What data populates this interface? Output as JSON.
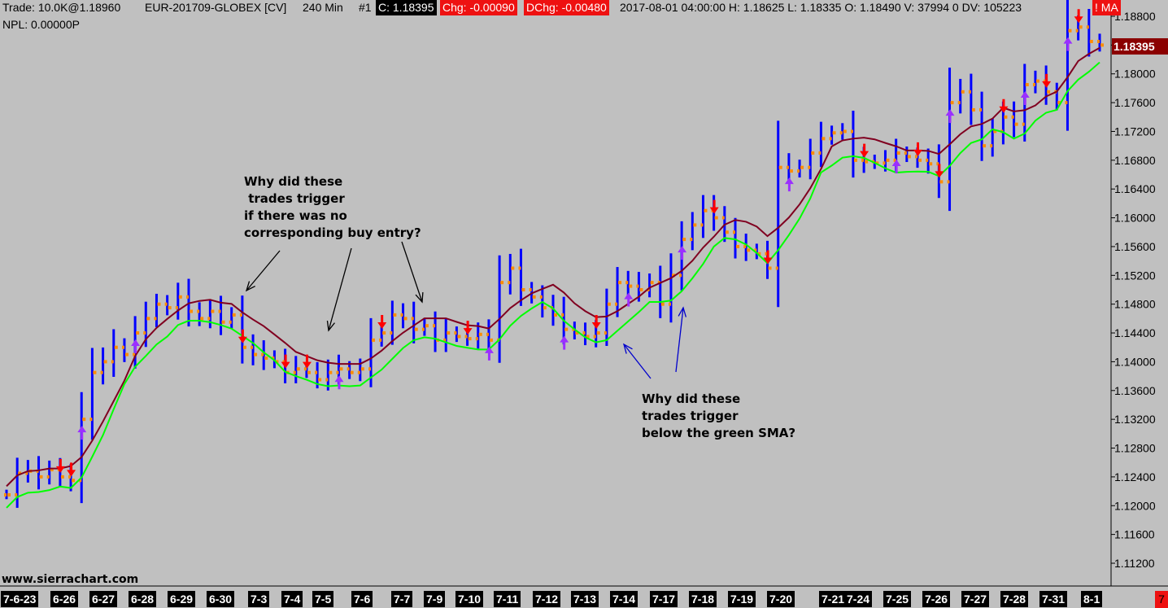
{
  "header": {
    "trade": "Trade: 10.0K@1.18960",
    "symbol": "EUR-201709-GLOBEX [CV]",
    "timeframe": "240 Min",
    "chart_num": "#1",
    "close": "C: 1.18395",
    "chg": "Chg: -0.00090",
    "dchg": "DChg: -0.00480",
    "bar_info": "2017-08-01 04:00:00 H: 1.18625 L: 1.18335 O: 1.18490 V: 37994 0 DV: 105223",
    "alert": "!",
    "alert_text": "MA"
  },
  "npl": "NPL: 0.00000P",
  "current_price": "1.18395",
  "watermark": "www.sierrachart.com",
  "corner_label": "7",
  "annotations": {
    "upper": "Why did these\n trades trigger\nif there was no\ncorresponding buy entry?",
    "lower": "Why did these\ntrades trigger\nbelow the green SMA?"
  },
  "colors": {
    "background": "#c0c0c0",
    "bars": "#0000ff",
    "bar_ticks": "#ff8c00",
    "ma_slow": "#800020",
    "sma_green": "#00ff00",
    "sell_arrow": "#ff0000",
    "buy_arrow": "#9b30ff"
  },
  "chart_data": {
    "type": "ohlc",
    "instrument": "EUR-201709-GLOBEX",
    "interval": "240 Min",
    "y_ticks": [
      "1.18800",
      "1.18400",
      "1.18000",
      "1.17600",
      "1.17200",
      "1.16800",
      "1.16400",
      "1.16000",
      "1.15600",
      "1.15200",
      "1.14800",
      "1.14400",
      "1.14000",
      "1.13600",
      "1.13200",
      "1.12800",
      "1.12400",
      "1.12000",
      "1.11600",
      "1.11200"
    ],
    "ylim": [
      1.109,
      1.189
    ],
    "dates": [
      "7-6-23",
      "6-26",
      "6-27",
      "6-28",
      "6-29",
      "6-30",
      "7-3",
      "7-4",
      "7-5",
      "7-6",
      "7-7",
      "7-9",
      "7-10",
      "7-11",
      "7-12",
      "7-13",
      "7-14",
      "7-17",
      "7-18",
      "7-19",
      "7-20",
      "7-21",
      "7-24",
      "7-25",
      "7-26",
      "7-27",
      "7-28",
      "7-31",
      "8-1"
    ],
    "close_series": [
      1.1215,
      1.1245,
      1.1248,
      1.124,
      1.125,
      1.124,
      1.1235,
      1.132,
      1.1385,
      1.14,
      1.142,
      1.141,
      1.144,
      1.146,
      1.148,
      1.1475,
      1.149,
      1.147,
      1.146,
      1.147,
      1.1455,
      1.1465,
      1.142,
      1.141,
      1.1405,
      1.14,
      1.1385,
      1.139,
      1.1385,
      1.1375,
      1.1385,
      1.139,
      1.1385,
      1.139,
      1.143,
      1.144,
      1.1465,
      1.146,
      1.1445,
      1.145,
      1.143,
      1.144,
      1.1435,
      1.1432,
      1.1438,
      1.143,
      1.151,
      1.153,
      1.15,
      1.149,
      1.1475,
      1.1465,
      1.1445,
      1.144,
      1.1435,
      1.144,
      1.148,
      1.151,
      1.1505,
      1.15,
      1.151,
      1.148,
      1.152,
      1.157,
      1.159,
      1.161,
      1.16,
      1.158,
      1.156,
      1.1555,
      1.155,
      1.153,
      1.167,
      1.1665,
      1.167,
      1.169,
      1.171,
      1.1718,
      1.172,
      1.168,
      1.1678,
      1.1676,
      1.168,
      1.169,
      1.1685,
      1.168,
      1.1675,
      1.165,
      1.176,
      1.1775,
      1.175,
      1.17,
      1.172,
      1.174,
      1.173,
      1.1785,
      1.179,
      1.1775,
      1.176,
      1.186,
      1.1865,
      1.1845,
      1.184
    ],
    "sell_arrows": 16,
    "buy_arrows": 12
  }
}
